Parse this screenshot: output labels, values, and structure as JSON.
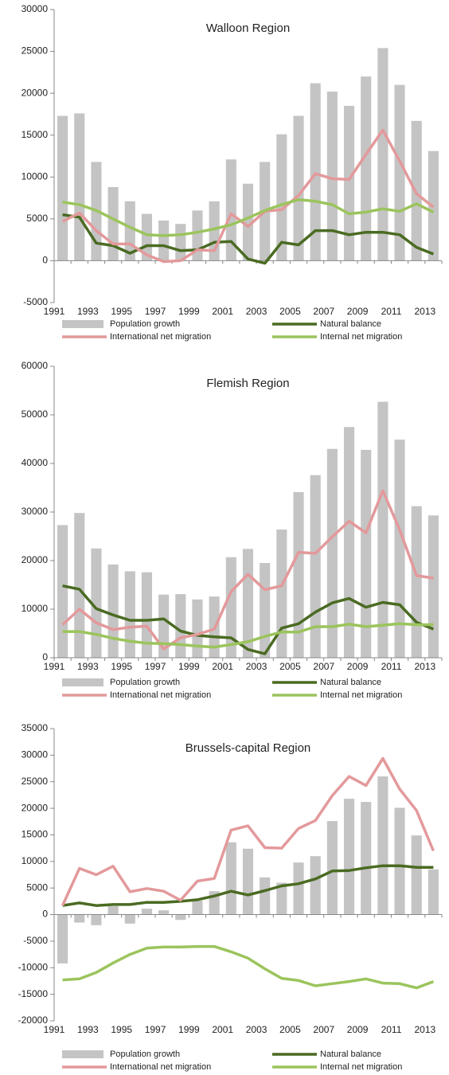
{
  "chart_data": [
    {
      "type": "combo",
      "title": "Walloon Region",
      "categories": [
        "1991",
        null,
        "1993",
        null,
        "1995",
        null,
        "1997",
        null,
        "1999",
        null,
        "2001",
        null,
        "2003",
        null,
        "2005",
        null,
        "2007",
        null,
        "2009",
        null,
        "2011",
        null,
        "2013"
      ],
      "ylim": [
        -5000,
        30000
      ],
      "yticks": [
        -5000,
        0,
        5000,
        10000,
        15000,
        20000,
        25000,
        30000
      ],
      "series": [
        {
          "name": "Population growth",
          "type": "bar",
          "color": "#c4c4c4",
          "values": [
            17300,
            17600,
            11800,
            8800,
            7100,
            5600,
            4800,
            4400,
            6000,
            7100,
            12100,
            9200,
            11800,
            15100,
            17300,
            21200,
            20200,
            18500,
            22000,
            25400,
            21000,
            16700,
            13100
          ]
        },
        {
          "name": "Natural balance",
          "type": "line",
          "color": "#4a6b22",
          "values": [
            5500,
            5200,
            2100,
            1800,
            900,
            1800,
            1800,
            1200,
            1300,
            2200,
            2300,
            200,
            -300,
            2200,
            1900,
            3600,
            3600,
            3100,
            3400,
            3400,
            3100,
            1600,
            800
          ]
        },
        {
          "name": "International net migration",
          "type": "line",
          "color": "#e3999b",
          "values": [
            4700,
            5700,
            3600,
            2000,
            2000,
            700,
            -100,
            0,
            1300,
            1200,
            5600,
            4100,
            5900,
            6100,
            7800,
            10400,
            9800,
            9700,
            12700,
            15600,
            11900,
            8000,
            6400
          ]
        },
        {
          "name": "Internal net migration",
          "type": "line",
          "color": "#9bc45c",
          "values": [
            7000,
            6700,
            6000,
            5000,
            4000,
            3100,
            3000,
            3100,
            3400,
            3800,
            4300,
            5100,
            6000,
            6700,
            7300,
            7100,
            6700,
            5600,
            5800,
            6200,
            5900,
            6800,
            5800
          ]
        }
      ]
    },
    {
      "type": "combo",
      "title": "Flemish Region",
      "categories": [
        "1991",
        null,
        "1993",
        null,
        "1995",
        null,
        "1997",
        null,
        "1999",
        null,
        "2001",
        null,
        "2003",
        null,
        "2005",
        null,
        "2007",
        null,
        "2009",
        null,
        "2011",
        null,
        "2013"
      ],
      "ylim": [
        0,
        60000
      ],
      "yticks": [
        0,
        10000,
        20000,
        30000,
        40000,
        50000,
        60000
      ],
      "series": [
        {
          "name": "Population growth",
          "type": "bar",
          "color": "#c4c4c4",
          "values": [
            27300,
            29800,
            22500,
            19200,
            17800,
            17600,
            13000,
            13100,
            12000,
            12600,
            20700,
            22400,
            19500,
            26400,
            34100,
            37600,
            43000,
            47500,
            42800,
            52700,
            44900,
            31200,
            29300
          ]
        },
        {
          "name": "Natural balance",
          "type": "line",
          "color": "#4a6b22",
          "values": [
            14800,
            14100,
            10100,
            8800,
            7700,
            7700,
            8000,
            5500,
            4600,
            4300,
            4100,
            1700,
            800,
            6100,
            7000,
            9400,
            11300,
            12200,
            10400,
            11400,
            10900,
            7300,
            5900
          ]
        },
        {
          "name": "International net migration",
          "type": "line",
          "color": "#e3999b",
          "values": [
            6800,
            10000,
            7200,
            5800,
            6300,
            6500,
            1800,
            4100,
            4800,
            5900,
            13600,
            17200,
            14000,
            14800,
            21700,
            21500,
            24900,
            28100,
            25700,
            34400,
            26300,
            16900,
            16400
          ]
        },
        {
          "name": "Internal net migration",
          "type": "line",
          "color": "#9bc45c",
          "values": [
            5400,
            5400,
            4800,
            4000,
            3400,
            3000,
            2900,
            2700,
            2400,
            2200,
            2700,
            3300,
            4400,
            5300,
            5300,
            6400,
            6400,
            6900,
            6400,
            6700,
            7000,
            6800,
            6800
          ]
        }
      ]
    },
    {
      "type": "combo",
      "title": "Brussels-capital Region",
      "categories": [
        "1991",
        null,
        "1993",
        null,
        "1995",
        null,
        "1997",
        null,
        "1999",
        null,
        "2001",
        null,
        "2003",
        null,
        "2005",
        null,
        "2007",
        null,
        "2009",
        null,
        "2011",
        null,
        "2013"
      ],
      "ylim": [
        -20000,
        35000
      ],
      "yticks": [
        -20000,
        -15000,
        -10000,
        -5000,
        0,
        5000,
        10000,
        15000,
        20000,
        25000,
        30000,
        35000
      ],
      "series": [
        {
          "name": "Population growth",
          "type": "bar",
          "color": "#c4c4c4",
          "values": [
            -9200,
            -1500,
            -2000,
            1600,
            -1700,
            1100,
            800,
            -1000,
            2600,
            4400,
            13600,
            12400,
            7000,
            6000,
            9800,
            11000,
            17600,
            21800,
            21200,
            26000,
            20100,
            14900,
            8500
          ]
        },
        {
          "name": "Natural balance",
          "type": "line",
          "color": "#4a6b22",
          "values": [
            1700,
            2200,
            1700,
            1900,
            1900,
            2300,
            2300,
            2500,
            2800,
            3500,
            4400,
            3700,
            4500,
            5400,
            5800,
            6700,
            8200,
            8300,
            8800,
            9200,
            9200,
            8900,
            8900
          ]
        },
        {
          "name": "International net migration",
          "type": "line",
          "color": "#e3999b",
          "values": [
            1700,
            8700,
            7500,
            9100,
            4300,
            4900,
            4400,
            2700,
            6300,
            6800,
            15900,
            16700,
            12600,
            12500,
            16200,
            17700,
            22400,
            26000,
            24300,
            29400,
            23600,
            19600,
            12000
          ]
        },
        {
          "name": "Internal net migration",
          "type": "line",
          "color": "#9bc45c",
          "values": [
            -12300,
            -12100,
            -10900,
            -9100,
            -7500,
            -6300,
            -6100,
            -6100,
            -6000,
            -6000,
            -7000,
            -8200,
            -10200,
            -12000,
            -12400,
            -13400,
            -13000,
            -12600,
            -12100,
            -12900,
            -13000,
            -13800,
            -12600
          ]
        }
      ]
    }
  ]
}
